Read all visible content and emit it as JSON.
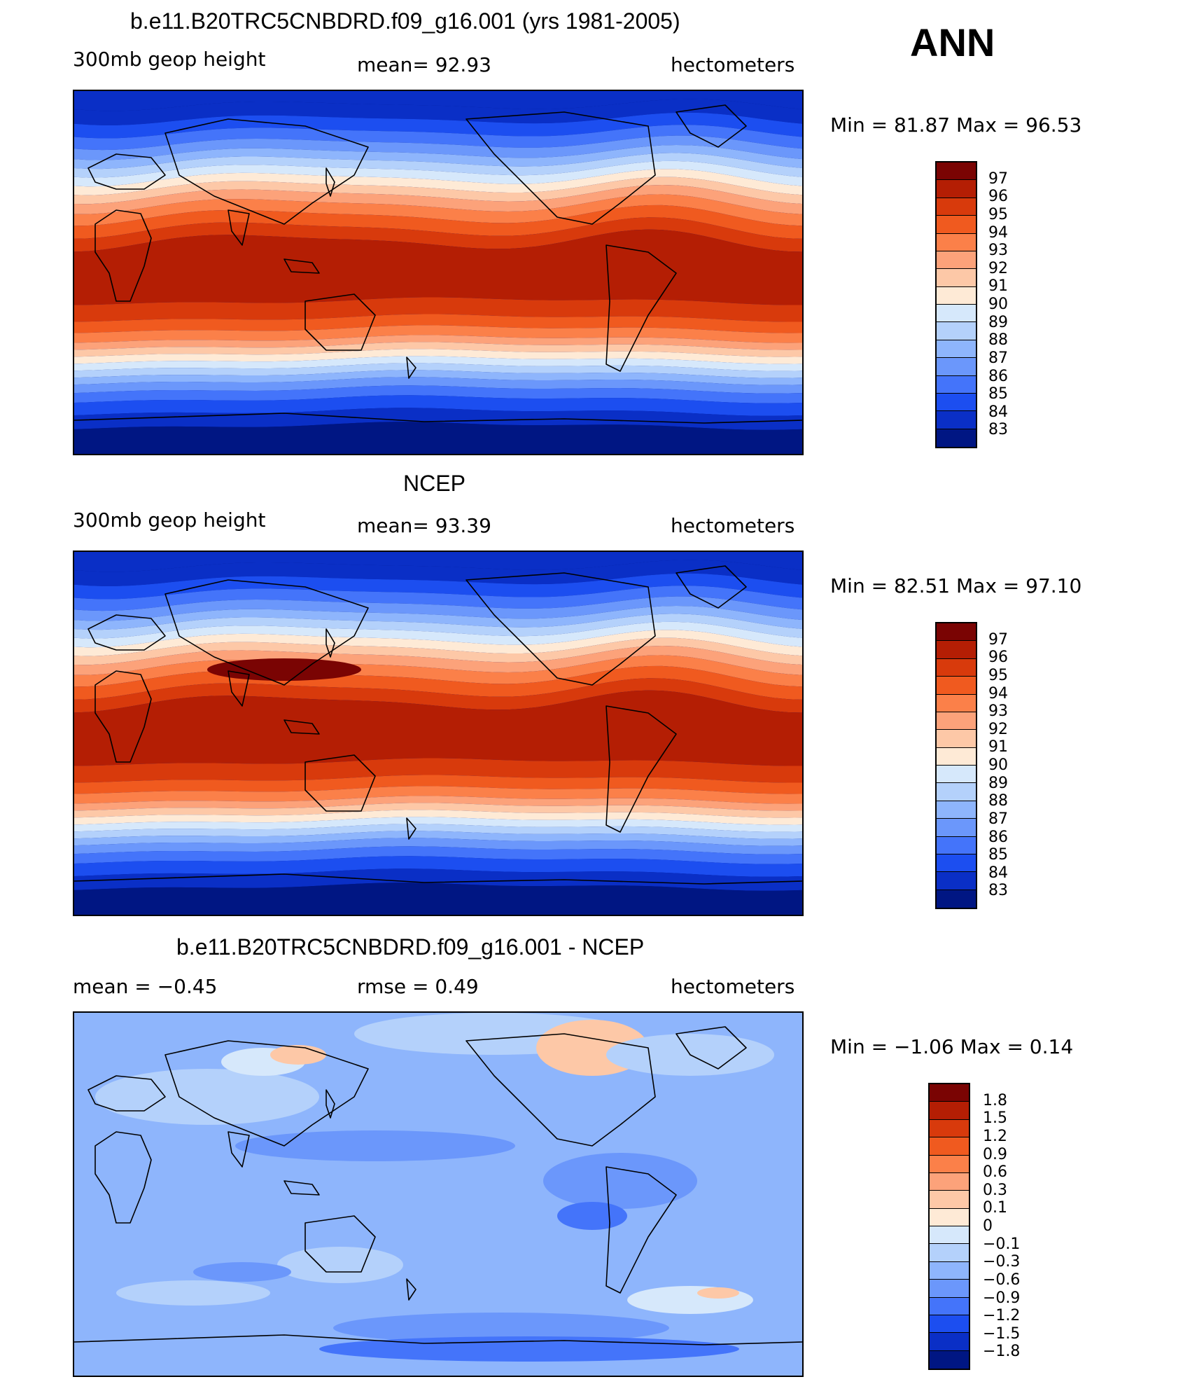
{
  "season": "ANN",
  "panels": [
    {
      "title": "b.e11.B20TRC5CNBDRD.f09_g16.001 (yrs 1981-2005)",
      "left_label": "300mb geop height",
      "center_label": "mean=   92.93",
      "right_label": "hectometers",
      "minmax": "Min =   81.87 Max =   96.53"
    },
    {
      "title": "NCEP",
      "left_label": "300mb geop height",
      "center_label": "mean=   93.39",
      "right_label": "hectometers",
      "minmax": "Min =   82.51 Max =   97.10"
    },
    {
      "title": "b.e11.B20TRC5CNBDRD.f09_g16.001 - NCEP",
      "left_label": "mean =   −0.45",
      "center_label": "rmse =    0.49",
      "right_label": "hectometers",
      "minmax": "Min =  −1.06 Max =    0.14"
    }
  ],
  "chart_data": [
    {
      "type": "heatmap",
      "title": "b.e11.B20TRC5CNBDRD.f09_g16.001 (yrs 1981-2005)",
      "variable": "300mb geop height",
      "units": "hectometers",
      "mean": 92.93,
      "min": 81.87,
      "max": 96.53,
      "colorbar_levels": [
        97,
        96,
        95,
        94,
        93,
        92,
        91,
        90,
        89,
        88,
        87,
        86,
        85,
        84,
        83
      ]
    },
    {
      "type": "heatmap",
      "title": "NCEP",
      "variable": "300mb geop height",
      "units": "hectometers",
      "mean": 93.39,
      "min": 82.51,
      "max": 97.1,
      "colorbar_levels": [
        97,
        96,
        95,
        94,
        93,
        92,
        91,
        90,
        89,
        88,
        87,
        86,
        85,
        84,
        83
      ]
    },
    {
      "type": "heatmap",
      "title": "b.e11.B20TRC5CNBDRD.f09_g16.001 - NCEP",
      "units": "hectometers",
      "mean": -0.45,
      "rmse": 0.49,
      "min": -1.06,
      "max": 0.14,
      "colorbar_levels": [
        "1.8",
        "1.5",
        "1.2",
        "0.9",
        "0.6",
        "0.3",
        "0.1",
        "0",
        "−0.1",
        "−0.3",
        "−0.6",
        "−0.9",
        "−1.2",
        "−1.5",
        "−1.8"
      ]
    }
  ],
  "colors": {
    "scale": [
      "#7a0403",
      "#b41e04",
      "#d83a0c",
      "#f05a1f",
      "#fb8049",
      "#fca27a",
      "#fdc8a7",
      "#feead6",
      "#d6e8fb",
      "#b4d1fb",
      "#8eb5fc",
      "#6b97fb",
      "#4474fa",
      "#1c4ef0",
      "#0a2fc6",
      "#001683"
    ]
  }
}
